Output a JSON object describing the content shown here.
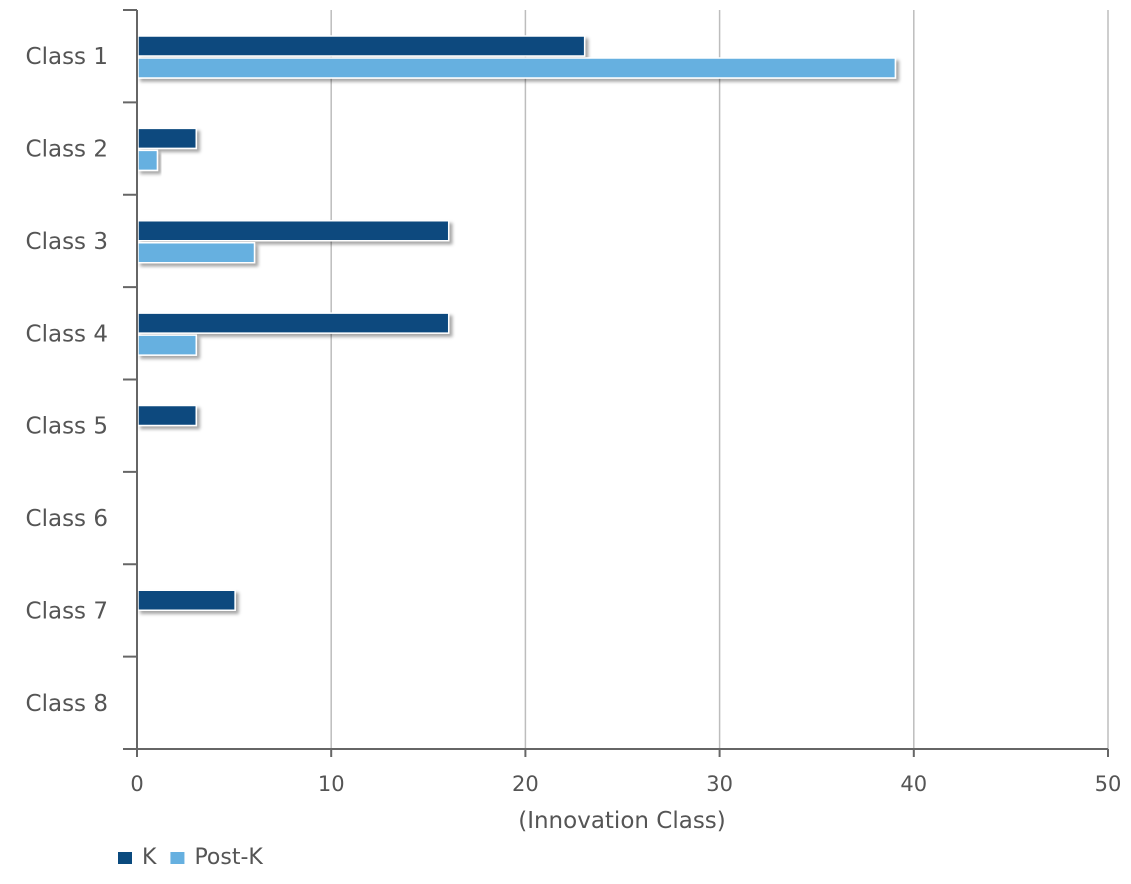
{
  "chart_data": {
    "type": "bar",
    "orientation": "horizontal",
    "categories": [
      "Class 1",
      "Class 2",
      "Class 3",
      "Class 4",
      "Class 5",
      "Class 6",
      "Class 7",
      "Class 8"
    ],
    "series": [
      {
        "name": "K",
        "color": "#0a4a7e",
        "values": [
          23,
          3,
          16,
          16,
          3,
          0,
          5,
          0
        ]
      },
      {
        "name": "Post-K",
        "color": "#66b0e0",
        "values": [
          39,
          1,
          6,
          3,
          0,
          0,
          0,
          0
        ]
      }
    ],
    "xlabel": "(Innovation Class)",
    "ylabel": "",
    "title": "",
    "xlim": [
      0,
      50
    ],
    "xticks": [
      0,
      10,
      20,
      30,
      40,
      50
    ],
    "grid": true,
    "legend_position": "bottom-left"
  },
  "colors": {
    "text": "#555555",
    "axis": "#666666",
    "grid": "#bdbdbd"
  }
}
